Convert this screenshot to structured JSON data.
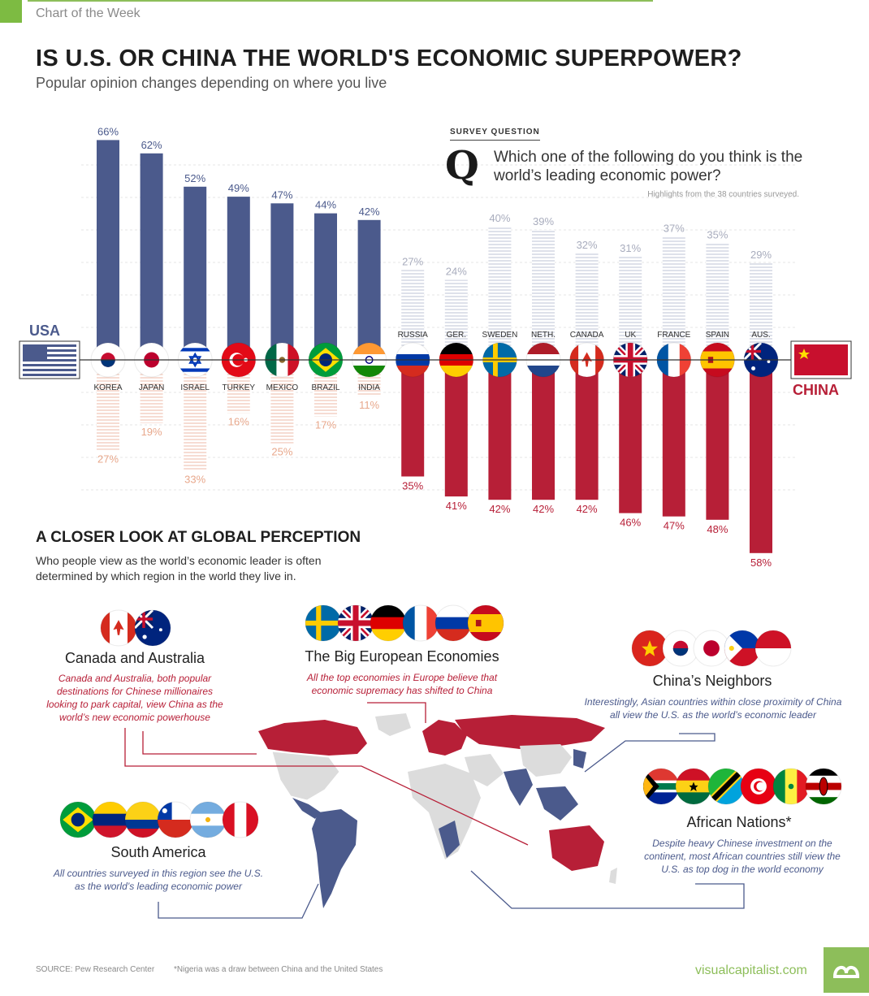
{
  "header": {
    "kicker": "Chart of the Week",
    "title": "IS U.S. OR CHINA THE WORLD'S ECONOMIC SUPERPOWER?",
    "subtitle": "Popular opinion changes depending on where you live"
  },
  "survey": {
    "label": "SURVEY QUESTION",
    "q_letter": "Q",
    "question": "Which one of the following do you think is the world’s leading economic power?",
    "note": "Highlights from the 38 countries surveyed."
  },
  "sides": {
    "usa": "USA",
    "china": "CHINA"
  },
  "colors": {
    "usa": "#4b5a8c",
    "china": "#b71f37",
    "usa_light": "#c9cddc",
    "china_light": "#f0c6b6",
    "green": "#8dbe5a",
    "land": "#dcdcdc"
  },
  "chart_data": {
    "type": "bar",
    "categories": [
      "KOREA",
      "JAPAN",
      "ISRAEL",
      "TURKEY",
      "MEXICO",
      "BRAZIL",
      "INDIA",
      "RUSSIA",
      "GER.",
      "SWEDEN",
      "NETH.",
      "CANADA",
      "UK",
      "FRANCE",
      "SPAIN",
      "AUS."
    ],
    "series": [
      {
        "name": "USA",
        "values": [
          66,
          62,
          52,
          49,
          47,
          44,
          42,
          27,
          24,
          40,
          39,
          32,
          31,
          37,
          35,
          29
        ]
      },
      {
        "name": "CHINA",
        "values": [
          27,
          19,
          33,
          16,
          25,
          17,
          11,
          35,
          41,
          42,
          42,
          42,
          46,
          47,
          48,
          58
        ]
      }
    ],
    "labels_usa": [
      "66%",
      "62%",
      "52%",
      "49%",
      "47%",
      "44%",
      "42%",
      "27%",
      "24%",
      "40%",
      "39%",
      "32%",
      "31%",
      "37%",
      "35%",
      "29%"
    ],
    "labels_china": [
      "27%",
      "19%",
      "33%",
      "16%",
      "25%",
      "17%",
      "11%",
      "35%",
      "41%",
      "42%",
      "42%",
      "42%",
      "46%",
      "47%",
      "48%",
      "58%"
    ],
    "leader": [
      "USA",
      "USA",
      "USA",
      "USA",
      "USA",
      "USA",
      "USA",
      "CHINA",
      "CHINA",
      "CHINA",
      "CHINA",
      "CHINA",
      "CHINA",
      "CHINA",
      "CHINA",
      "CHINA"
    ],
    "flags": [
      "korea",
      "japan",
      "israel",
      "turkey",
      "mexico",
      "brazil",
      "india",
      "russia",
      "germany",
      "sweden",
      "netherlands",
      "canada",
      "uk",
      "france",
      "spain",
      "australia"
    ],
    "ylim": [
      0,
      70
    ],
    "grid": true
  },
  "closer_look": {
    "title": "A CLOSER LOOK AT GLOBAL PERCEPTION",
    "text": "Who people view as the world’s economic leader is often determined by which region in the world they live in."
  },
  "regions": {
    "canada_australia": {
      "title": "Canada and Australia",
      "text": "Canada and Australia, both popular destinations for Chinese millionaires looking to park capital, view China as the world’s new economic powerhouse",
      "flags": [
        "canada",
        "australia"
      ]
    },
    "europe": {
      "title": "The Big European Economies",
      "text": "All the top economies in Europe believe that economic supremacy has shifted to China",
      "flags": [
        "sweden",
        "uk",
        "germany",
        "france",
        "russia",
        "spain"
      ]
    },
    "neighbors": {
      "title": "China’s Neighbors",
      "text": "Interestingly, Asian countries within close proximity of China all view the U.S. as the world’s economic leader",
      "flags": [
        "vietnam",
        "korea",
        "japan",
        "philippines",
        "indonesia"
      ]
    },
    "south_america": {
      "title": "South America",
      "text": "All countries surveyed in this region see the U.S. as the world’s leading economic power",
      "flags": [
        "brazil",
        "venezuela",
        "colombia",
        "chile",
        "argentina",
        "peru"
      ]
    },
    "africa": {
      "title": "African Nations*",
      "text": "Despite heavy Chinese investment on the continent, most African countries still view the U.S. as top dog in the world economy",
      "flags": [
        "south_africa",
        "ghana",
        "tanzania",
        "tunisia",
        "senegal",
        "kenya"
      ]
    }
  },
  "footer": {
    "source": "SOURCE: Pew Research Center",
    "note": "*Nigeria was a draw between China and the United States",
    "brand": "visualcapitalist.com"
  }
}
